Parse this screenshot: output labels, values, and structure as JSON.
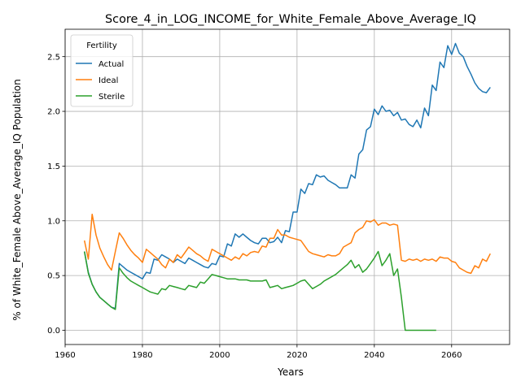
{
  "chart_data": {
    "type": "line",
    "title": "Score_4_in_LOG_INCOME_for_White_Female_Above_Average_IQ",
    "xlabel": "Years",
    "ylabel": "% of White_Female Above_Average_IQ Population",
    "xlim": [
      1960,
      2075
    ],
    "ylim": [
      -0.13,
      2.75
    ],
    "xticks": [
      1960,
      1980,
      2000,
      2020,
      2040,
      2060
    ],
    "xtick_labels": [
      "1960",
      "1980",
      "2000",
      "2020",
      "2040",
      "2060"
    ],
    "yticks": [
      0.0,
      0.5,
      1.0,
      1.5,
      2.0,
      2.5
    ],
    "ytick_labels": [
      "0.0",
      "0.5",
      "1.0",
      "1.5",
      "2.0",
      "2.5"
    ],
    "grid": true,
    "legend": {
      "title": "Fertility",
      "placement": "upper-left"
    },
    "series": [
      {
        "name": "Actual",
        "color": "#1f77b4",
        "x": [
          1965,
          1966,
          1967,
          1968,
          1969,
          1970,
          1971,
          1972,
          1973,
          1974,
          1975,
          1976,
          1977,
          1978,
          1979,
          1980,
          1981,
          1982,
          1983,
          1984,
          1985,
          1986,
          1987,
          1988,
          1989,
          1990,
          1991,
          1992,
          1993,
          1994,
          1995,
          1996,
          1997,
          1998,
          1999,
          2000,
          2001,
          2002,
          2003,
          2004,
          2005,
          2006,
          2007,
          2008,
          2009,
          2010,
          2011,
          2012,
          2013,
          2014,
          2015,
          2016,
          2017,
          2018,
          2019,
          2020,
          2021,
          2022,
          2023,
          2024,
          2025,
          2026,
          2027,
          2028,
          2029,
          2030,
          2031,
          2032,
          2033,
          2034,
          2035,
          2036,
          2037,
          2038,
          2039,
          2040,
          2041,
          2042,
          2043,
          2044,
          2045,
          2046,
          2047,
          2048,
          2049,
          2050,
          2051,
          2052,
          2053,
          2054,
          2055,
          2056,
          2057,
          2058,
          2059,
          2060,
          2061,
          2062,
          2063,
          2064,
          2065,
          2066,
          2067,
          2068,
          2069,
          2070
        ],
        "values": [
          0.72,
          0.53,
          0.42,
          0.35,
          0.3,
          0.27,
          0.24,
          0.21,
          0.2,
          0.61,
          0.58,
          0.55,
          0.53,
          0.51,
          0.49,
          0.47,
          0.53,
          0.52,
          0.65,
          0.64,
          0.69,
          0.67,
          0.65,
          0.62,
          0.65,
          0.63,
          0.61,
          0.66,
          0.64,
          0.62,
          0.6,
          0.58,
          0.57,
          0.61,
          0.6,
          0.68,
          0.67,
          0.79,
          0.77,
          0.88,
          0.85,
          0.88,
          0.85,
          0.82,
          0.8,
          0.79,
          0.84,
          0.84,
          0.8,
          0.81,
          0.85,
          0.8,
          0.91,
          0.9,
          1.08,
          1.08,
          1.29,
          1.25,
          1.34,
          1.33,
          1.42,
          1.4,
          1.41,
          1.37,
          1.35,
          1.33,
          1.3,
          1.3,
          1.3,
          1.42,
          1.39,
          1.61,
          1.65,
          1.83,
          1.86,
          2.02,
          1.97,
          2.05,
          2.0,
          2.01,
          1.96,
          1.99,
          1.92,
          1.93,
          1.88,
          1.86,
          1.92,
          1.85,
          2.03,
          1.96,
          2.24,
          2.19,
          2.45,
          2.4,
          2.6,
          2.52,
          2.62,
          2.53,
          2.5,
          2.41,
          2.34,
          2.26,
          2.21,
          2.18,
          2.17,
          2.22
        ]
      },
      {
        "name": "Ideal",
        "color": "#ff7f0e",
        "x": [
          1965,
          1966,
          1967,
          1968,
          1969,
          1970,
          1971,
          1972,
          1973,
          1974,
          1975,
          1976,
          1977,
          1978,
          1979,
          1980,
          1981,
          1982,
          1983,
          1984,
          1985,
          1986,
          1987,
          1988,
          1989,
          1990,
          1991,
          1992,
          1993,
          1994,
          1995,
          1996,
          1997,
          1998,
          1999,
          2000,
          2001,
          2002,
          2003,
          2004,
          2005,
          2006,
          2007,
          2008,
          2009,
          2010,
          2011,
          2012,
          2013,
          2014,
          2015,
          2016,
          2017,
          2018,
          2019,
          2020,
          2021,
          2022,
          2023,
          2024,
          2025,
          2026,
          2027,
          2028,
          2029,
          2030,
          2031,
          2032,
          2033,
          2034,
          2035,
          2036,
          2037,
          2038,
          2039,
          2040,
          2041,
          2042,
          2043,
          2044,
          2045,
          2046,
          2047,
          2048,
          2049,
          2050,
          2051,
          2052,
          2053,
          2054,
          2055,
          2056,
          2057,
          2058,
          2059,
          2060,
          2061,
          2062,
          2063,
          2064,
          2065,
          2066,
          2067,
          2068,
          2069,
          2070
        ],
        "values": [
          0.82,
          0.65,
          1.06,
          0.87,
          0.75,
          0.67,
          0.6,
          0.55,
          0.72,
          0.89,
          0.84,
          0.78,
          0.73,
          0.69,
          0.66,
          0.62,
          0.74,
          0.71,
          0.68,
          0.65,
          0.6,
          0.57,
          0.65,
          0.62,
          0.69,
          0.66,
          0.71,
          0.76,
          0.73,
          0.7,
          0.68,
          0.65,
          0.63,
          0.74,
          0.72,
          0.7,
          0.68,
          0.66,
          0.64,
          0.67,
          0.65,
          0.7,
          0.68,
          0.71,
          0.72,
          0.71,
          0.77,
          0.76,
          0.84,
          0.84,
          0.92,
          0.87,
          0.87,
          0.85,
          0.84,
          0.83,
          0.82,
          0.77,
          0.72,
          0.7,
          0.69,
          0.68,
          0.67,
          0.69,
          0.68,
          0.68,
          0.7,
          0.76,
          0.78,
          0.8,
          0.89,
          0.92,
          0.94,
          1.0,
          0.99,
          1.01,
          0.96,
          0.98,
          0.98,
          0.96,
          0.97,
          0.96,
          0.64,
          0.63,
          0.65,
          0.64,
          0.65,
          0.63,
          0.65,
          0.64,
          0.65,
          0.63,
          0.67,
          0.66,
          0.66,
          0.63,
          0.62,
          0.57,
          0.55,
          0.53,
          0.52,
          0.59,
          0.57,
          0.65,
          0.63,
          0.7
        ]
      },
      {
        "name": "Sterile",
        "color": "#2ca02c",
        "x": [
          1965,
          1966,
          1967,
          1968,
          1969,
          1970,
          1971,
          1972,
          1973,
          1974,
          1975,
          1976,
          1977,
          1978,
          1979,
          1980,
          1981,
          1982,
          1983,
          1984,
          1985,
          1986,
          1987,
          1988,
          1989,
          1990,
          1991,
          1992,
          1993,
          1994,
          1995,
          1996,
          1997,
          1998,
          1999,
          2000,
          2001,
          2002,
          2003,
          2004,
          2005,
          2006,
          2007,
          2008,
          2009,
          2010,
          2011,
          2012,
          2013,
          2014,
          2015,
          2016,
          2017,
          2018,
          2019,
          2020,
          2021,
          2022,
          2023,
          2024,
          2025,
          2026,
          2027,
          2028,
          2029,
          2030,
          2031,
          2032,
          2033,
          2034,
          2035,
          2036,
          2037,
          2038,
          2039,
          2040,
          2041,
          2042,
          2043,
          2044,
          2045,
          2046,
          2047,
          2048,
          2049,
          2050,
          2051,
          2052,
          2053,
          2054,
          2055,
          2056
        ],
        "values": [
          0.72,
          0.52,
          0.42,
          0.35,
          0.3,
          0.27,
          0.24,
          0.21,
          0.19,
          0.57,
          0.52,
          0.48,
          0.45,
          0.43,
          0.41,
          0.39,
          0.37,
          0.35,
          0.34,
          0.33,
          0.38,
          0.37,
          0.41,
          0.4,
          0.39,
          0.38,
          0.37,
          0.41,
          0.4,
          0.39,
          0.44,
          0.43,
          0.47,
          0.51,
          0.5,
          0.49,
          0.48,
          0.47,
          0.47,
          0.47,
          0.46,
          0.46,
          0.46,
          0.45,
          0.45,
          0.45,
          0.45,
          0.46,
          0.39,
          0.4,
          0.41,
          0.38,
          0.39,
          0.4,
          0.41,
          0.43,
          0.45,
          0.46,
          0.42,
          0.38,
          0.4,
          0.42,
          0.45,
          0.47,
          0.49,
          0.51,
          0.54,
          0.57,
          0.6,
          0.64,
          0.57,
          0.6,
          0.53,
          0.56,
          0.61,
          0.66,
          0.72,
          0.59,
          0.64,
          0.7,
          0.5,
          0.56,
          0.3,
          0.0,
          0.0,
          0.0,
          0.0,
          0.0,
          0.0,
          0.0,
          0.0,
          0.0
        ]
      }
    ]
  }
}
